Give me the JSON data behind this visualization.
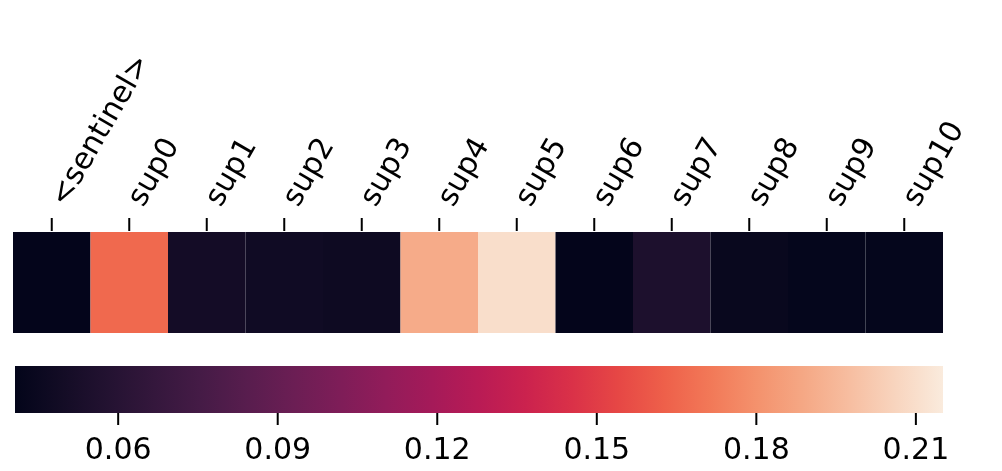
{
  "chart_data": {
    "type": "heatmap",
    "categories": [
      "<sentinel>",
      "sup0",
      "sup1",
      "sup2",
      "sup3",
      "sup4",
      "sup5",
      "sup6",
      "sup7",
      "sup8",
      "sup9",
      "sup10"
    ],
    "y_categories": [
      null
    ],
    "cells": [
      [
        0.041,
        0.166,
        0.05,
        0.048,
        0.047,
        0.19,
        0.21,
        0.041,
        0.055,
        0.044,
        0.042,
        0.042
      ]
    ],
    "clim": [
      0.0406,
      0.2151
    ],
    "cticks": [
      0.06,
      0.09,
      0.12,
      0.15,
      0.18,
      0.21
    ]
  }
}
